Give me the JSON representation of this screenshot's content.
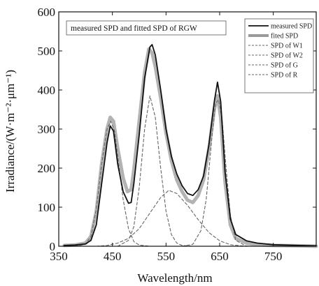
{
  "chart_data": {
    "type": "line",
    "title": "measured SPD and fitted SPD of RGW",
    "xlabel": "Wavelength/nm",
    "ylabel": "Irradiance/(W·m⁻²·μm⁻¹)",
    "xlim": [
      350,
      830
    ],
    "ylim": [
      0,
      600
    ],
    "xticks": [
      350,
      450,
      550,
      650,
      750
    ],
    "yticks": [
      0,
      100,
      200,
      300,
      400,
      500,
      600
    ],
    "grid": false,
    "legend_position": "top-right",
    "series": [
      {
        "name": "measured SPD",
        "style": "solid-thick",
        "color": "#111111",
        "x": [
          360,
          380,
          400,
          410,
          420,
          430,
          440,
          446,
          452,
          460,
          470,
          480,
          485,
          490,
          500,
          510,
          520,
          524,
          530,
          540,
          550,
          560,
          570,
          580,
          590,
          600,
          610,
          620,
          630,
          640,
          646,
          652,
          660,
          670,
          680,
          700,
          720,
          750,
          800,
          830
        ],
        "values": [
          2,
          3,
          6,
          15,
          55,
          160,
          265,
          308,
          295,
          210,
          140,
          110,
          112,
          160,
          285,
          430,
          510,
          516,
          490,
          400,
          300,
          230,
          185,
          155,
          135,
          130,
          145,
          180,
          260,
          370,
          420,
          370,
          190,
          70,
          30,
          14,
          8,
          4,
          2,
          1
        ]
      },
      {
        "name": "fited SPD",
        "style": "wide-gray",
        "color": "#9a9a9a",
        "x": [
          360,
          380,
          400,
          410,
          420,
          430,
          440,
          446,
          452,
          460,
          470,
          478,
          485,
          490,
          500,
          510,
          518,
          524,
          530,
          540,
          550,
          560,
          570,
          580,
          590,
          600,
          610,
          620,
          630,
          640,
          646,
          652,
          660,
          670,
          680,
          700,
          720,
          750,
          800,
          830
        ],
        "values": [
          2,
          3,
          8,
          25,
          90,
          210,
          300,
          330,
          320,
          250,
          175,
          140,
          145,
          195,
          320,
          445,
          505,
          495,
          460,
          380,
          290,
          220,
          170,
          140,
          118,
          112,
          130,
          170,
          250,
          350,
          385,
          330,
          165,
          55,
          20,
          8,
          4,
          2,
          1,
          0
        ]
      },
      {
        "name": "SPD of W1",
        "style": "dashed",
        "color": "#666666",
        "x": [
          380,
          400,
          410,
          420,
          430,
          440,
          447,
          454,
          460,
          470,
          480,
          490,
          500,
          520
        ],
        "values": [
          0,
          5,
          25,
          95,
          210,
          300,
          320,
          295,
          230,
          120,
          45,
          12,
          3,
          0
        ]
      },
      {
        "name": "SPD of W2",
        "style": "dashed",
        "color": "#666666",
        "x": [
          420,
          440,
          460,
          480,
          500,
          520,
          540,
          555,
          570,
          590,
          610,
          630,
          650,
          670,
          690,
          710
        ],
        "values": [
          0,
          2,
          8,
          20,
          45,
          85,
          125,
          143,
          135,
          105,
          68,
          35,
          14,
          4,
          1,
          0
        ]
      },
      {
        "name": "SPD of G",
        "style": "dashed",
        "color": "#666666",
        "x": [
          460,
          480,
          490,
          500,
          510,
          520,
          530,
          540,
          550,
          560,
          570,
          580,
          600
        ],
        "values": [
          0,
          15,
          50,
          150,
          300,
          385,
          330,
          200,
          90,
          30,
          8,
          2,
          0
        ]
      },
      {
        "name": "SPD of R",
        "style": "dashed",
        "color": "#666666",
        "x": [
          580,
          600,
          615,
          625,
          635,
          642,
          648,
          655,
          662,
          670,
          680,
          700
        ],
        "values": [
          0,
          5,
          40,
          120,
          270,
          365,
          375,
          320,
          200,
          80,
          15,
          0
        ]
      }
    ]
  }
}
